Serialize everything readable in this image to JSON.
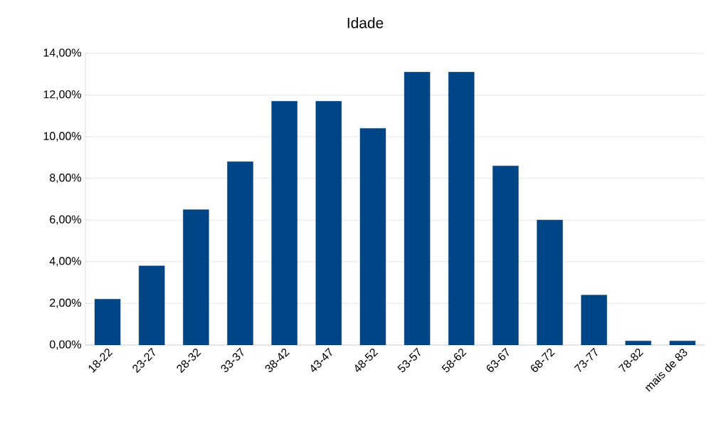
{
  "chart_data": {
    "type": "bar",
    "title": "Idade",
    "categories": [
      "18-22",
      "23-27",
      "28-32",
      "33-37",
      "38-42",
      "43-47",
      "48-52",
      "53-57",
      "58-62",
      "63-67",
      "68-72",
      "73-77",
      "78-82",
      "mais de 83"
    ],
    "values": [
      2.2,
      3.8,
      6.5,
      8.8,
      11.7,
      11.7,
      10.4,
      13.1,
      13.1,
      8.6,
      6.0,
      2.4,
      0.2,
      0.2
    ],
    "color": "#004586",
    "ylim": [
      0,
      14
    ],
    "yticks": [
      {
        "value": 0,
        "label": "0,00%"
      },
      {
        "value": 2,
        "label": "2,00%"
      },
      {
        "value": 4,
        "label": "4,00%"
      },
      {
        "value": 6,
        "label": "6,00%"
      },
      {
        "value": 8,
        "label": "8,00%"
      },
      {
        "value": 10,
        "label": "10,00%"
      },
      {
        "value": 12,
        "label": "12,00%"
      },
      {
        "value": 14,
        "label": "14,00%"
      }
    ],
    "grid": "y"
  }
}
